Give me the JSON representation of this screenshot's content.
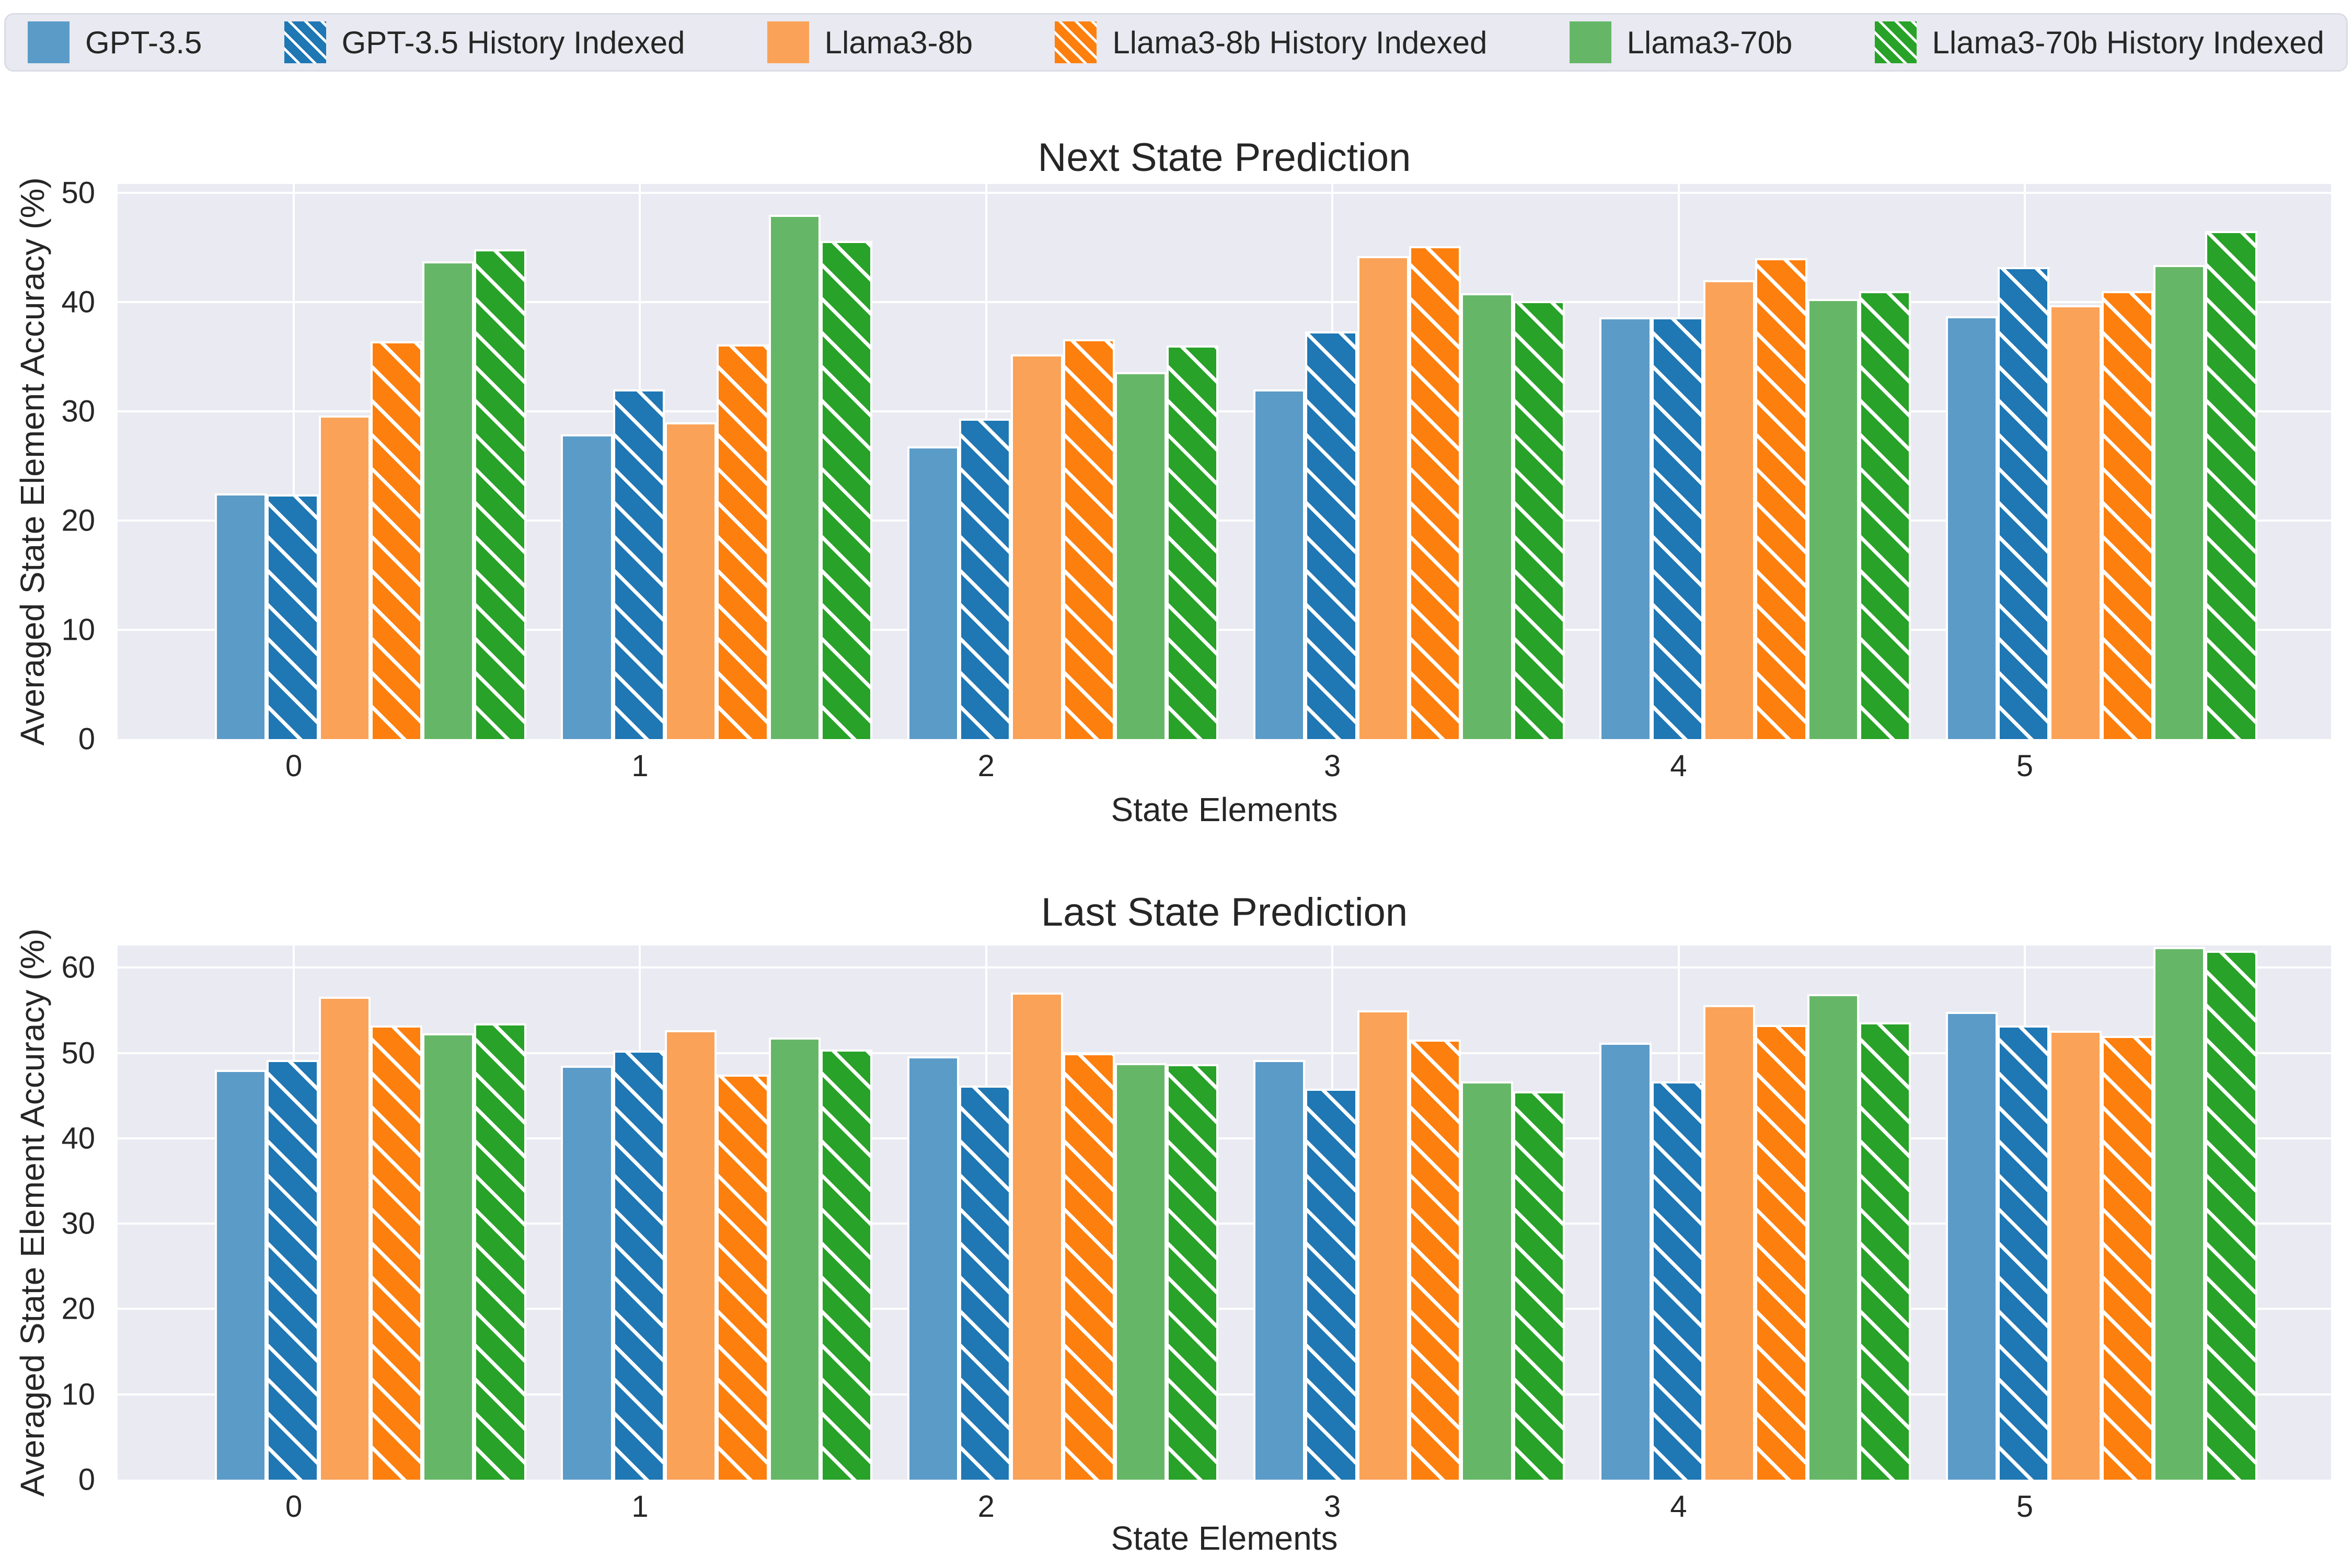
{
  "figure": {
    "background": "#ffffff",
    "axes_background": "#eaeaf2",
    "grid_color": "#ffffff",
    "text_color": "#262626"
  },
  "legend": {
    "items": [
      {
        "label": "GPT-3.5",
        "color": "#5b9bc8",
        "hatched": false
      },
      {
        "label": "GPT-3.5 History Indexed",
        "color": "#1f77b4",
        "hatched": true
      },
      {
        "label": "Llama3-8b",
        "color": "#faa258",
        "hatched": false
      },
      {
        "label": "Llama3-8b History Indexed",
        "color": "#fd7f0e",
        "hatched": true
      },
      {
        "label": "Llama3-70b",
        "color": "#65b767",
        "hatched": false
      },
      {
        "label": "Llama3-70b History Indexed",
        "color": "#28a228",
        "hatched": true
      }
    ]
  },
  "chart_data": [
    {
      "type": "bar",
      "title": "Next State Prediction",
      "xlabel": "State Elements",
      "ylabel": "Averaged State Element Accuracy (%)",
      "categories": [
        "0",
        "1",
        "2",
        "3",
        "4",
        "5"
      ],
      "yticks": [
        0,
        10,
        20,
        30,
        40,
        50
      ],
      "ylim": [
        0,
        50.8
      ],
      "grid": true,
      "legend_position": "top",
      "series": [
        {
          "name": "GPT-3.5",
          "values": [
            22.5,
            27.9,
            26.8,
            32.0,
            38.6,
            38.7
          ]
        },
        {
          "name": "GPT-3.5 History Indexed",
          "values": [
            22.4,
            32.0,
            29.3,
            37.3,
            38.6,
            43.2
          ]
        },
        {
          "name": "Llama3-8b",
          "values": [
            29.6,
            29.0,
            35.2,
            44.2,
            42.0,
            39.7
          ]
        },
        {
          "name": "Llama3-8b History Indexed",
          "values": [
            36.4,
            36.1,
            36.6,
            45.1,
            44.0,
            41.0
          ]
        },
        {
          "name": "Llama3-70b",
          "values": [
            43.7,
            48.0,
            33.6,
            40.8,
            40.3,
            43.4
          ]
        },
        {
          "name": "Llama3-70b History Indexed",
          "values": [
            44.8,
            45.6,
            36.0,
            40.1,
            41.0,
            46.5
          ]
        }
      ]
    },
    {
      "type": "bar",
      "title": "Last State Prediction",
      "xlabel": "State Elements",
      "ylabel": "Averaged State Element Accuracy (%)",
      "categories": [
        "0",
        "1",
        "2",
        "3",
        "4",
        "5"
      ],
      "yticks": [
        0,
        10,
        20,
        30,
        40,
        50,
        60
      ],
      "ylim": [
        0,
        62.6
      ],
      "grid": true,
      "legend_position": "top",
      "series": [
        {
          "name": "GPT-3.5",
          "values": [
            48.0,
            48.5,
            49.6,
            49.2,
            51.2,
            54.8
          ]
        },
        {
          "name": "GPT-3.5 History Indexed",
          "values": [
            49.2,
            50.3,
            46.2,
            45.8,
            46.7,
            53.2
          ]
        },
        {
          "name": "Llama3-8b",
          "values": [
            56.6,
            52.7,
            57.1,
            55.0,
            55.6,
            52.6
          ]
        },
        {
          "name": "Llama3-8b History Indexed",
          "values": [
            53.2,
            47.5,
            50.0,
            51.6,
            53.3,
            52.0
          ]
        },
        {
          "name": "Llama3-70b",
          "values": [
            52.3,
            51.8,
            48.8,
            46.7,
            56.9,
            62.4
          ]
        },
        {
          "name": "Llama3-70b History Indexed",
          "values": [
            53.5,
            50.4,
            48.7,
            45.5,
            53.6,
            62.0
          ]
        }
      ]
    }
  ]
}
